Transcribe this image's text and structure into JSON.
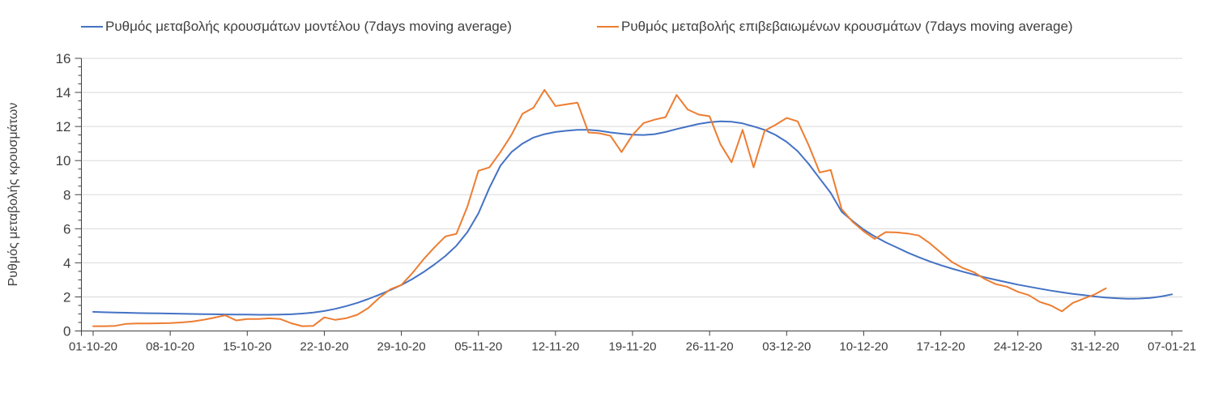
{
  "chart_data": {
    "type": "line",
    "title": "",
    "xlabel": "",
    "ylabel": "Ρυθμός μεταβολής κρουσμάτων",
    "ylim": [
      0,
      16
    ],
    "y_major_step": 2,
    "y_minor_step": 0.5,
    "grid": "horizontal-light",
    "legend_position": "top",
    "x_axis_type": "dates, daily points, weekly tick labels",
    "x_tick_interval_days": 7,
    "x_tick_labels": [
      "01-10-20",
      "08-10-20",
      "15-10-20",
      "22-10-20",
      "29-10-20",
      "05-11-20",
      "12-11-20",
      "19-11-20",
      "26-11-20",
      "03-12-20",
      "10-12-20",
      "17-12-20",
      "24-12-20",
      "31-12-20",
      "07-01-21"
    ],
    "y_tick_labels": [
      "0",
      "2",
      "4",
      "6",
      "8",
      "10",
      "12",
      "14",
      "16"
    ],
    "colors": {
      "model_line": "#4472C4",
      "confirmed_line": "#ED7D31",
      "gridline": "#D9D9D9",
      "axis": "#404040",
      "text": "#3F3F3F"
    },
    "series": [
      {
        "name": "Ρυθμός μεταβολής κρουσμάτων μοντέλου (7days moving average)",
        "color": "#4472C4",
        "start_day": 0,
        "start_date": "01-10-20",
        "end_date": "07-01-21",
        "values": [
          1.12,
          1.1,
          1.08,
          1.07,
          1.05,
          1.04,
          1.03,
          1.02,
          1.01,
          1.0,
          0.99,
          0.98,
          0.97,
          0.96,
          0.96,
          0.95,
          0.95,
          0.96,
          0.98,
          1.02,
          1.08,
          1.17,
          1.3,
          1.46,
          1.65,
          1.88,
          2.13,
          2.4,
          2.7,
          3.05,
          3.45,
          3.9,
          4.4,
          5.0,
          5.8,
          6.9,
          8.4,
          9.7,
          10.5,
          11.0,
          11.35,
          11.55,
          11.68,
          11.75,
          11.8,
          11.8,
          11.75,
          11.65,
          11.58,
          11.52,
          11.5,
          11.55,
          11.68,
          11.85,
          12.0,
          12.15,
          12.25,
          12.3,
          12.28,
          12.18,
          12.0,
          11.8,
          11.5,
          11.1,
          10.55,
          9.8,
          8.95,
          8.1,
          7.0,
          6.45,
          5.95,
          5.55,
          5.2,
          4.9,
          4.6,
          4.33,
          4.08,
          3.86,
          3.66,
          3.48,
          3.31,
          3.15,
          3.0,
          2.86,
          2.72,
          2.6,
          2.48,
          2.37,
          2.27,
          2.18,
          2.1,
          2.02,
          1.96,
          1.92,
          1.89,
          1.9,
          1.94,
          2.02,
          2.15
        ]
      },
      {
        "name": "Ρυθμός μεταβολής επιβεβαιωμένων κρουσμάτων (7days moving average)",
        "color": "#ED7D31",
        "start_day": 0,
        "start_date": "01-10-20",
        "end_date": "01-01-21",
        "values": [
          0.28,
          0.28,
          0.3,
          0.42,
          0.44,
          0.44,
          0.45,
          0.46,
          0.5,
          0.55,
          0.65,
          0.78,
          0.92,
          0.62,
          0.7,
          0.7,
          0.74,
          0.7,
          0.45,
          0.28,
          0.3,
          0.8,
          0.65,
          0.75,
          0.95,
          1.35,
          1.95,
          2.45,
          2.7,
          3.4,
          4.2,
          4.9,
          5.55,
          5.7,
          7.3,
          9.4,
          9.6,
          10.5,
          11.5,
          12.75,
          13.1,
          14.15,
          13.2,
          13.3,
          13.4,
          11.65,
          11.6,
          11.45,
          10.5,
          11.5,
          12.2,
          12.4,
          12.55,
          13.85,
          13.0,
          12.7,
          12.6,
          10.95,
          9.9,
          11.8,
          9.6,
          11.75,
          12.1,
          12.5,
          12.3,
          10.9,
          9.3,
          9.45,
          7.15,
          6.4,
          5.85,
          5.4,
          5.8,
          5.78,
          5.72,
          5.6,
          5.15,
          4.6,
          4.05,
          3.7,
          3.45,
          3.05,
          2.75,
          2.6,
          2.3,
          2.1,
          1.7,
          1.5,
          1.15,
          1.65,
          1.9,
          2.15,
          2.5
        ]
      }
    ]
  }
}
